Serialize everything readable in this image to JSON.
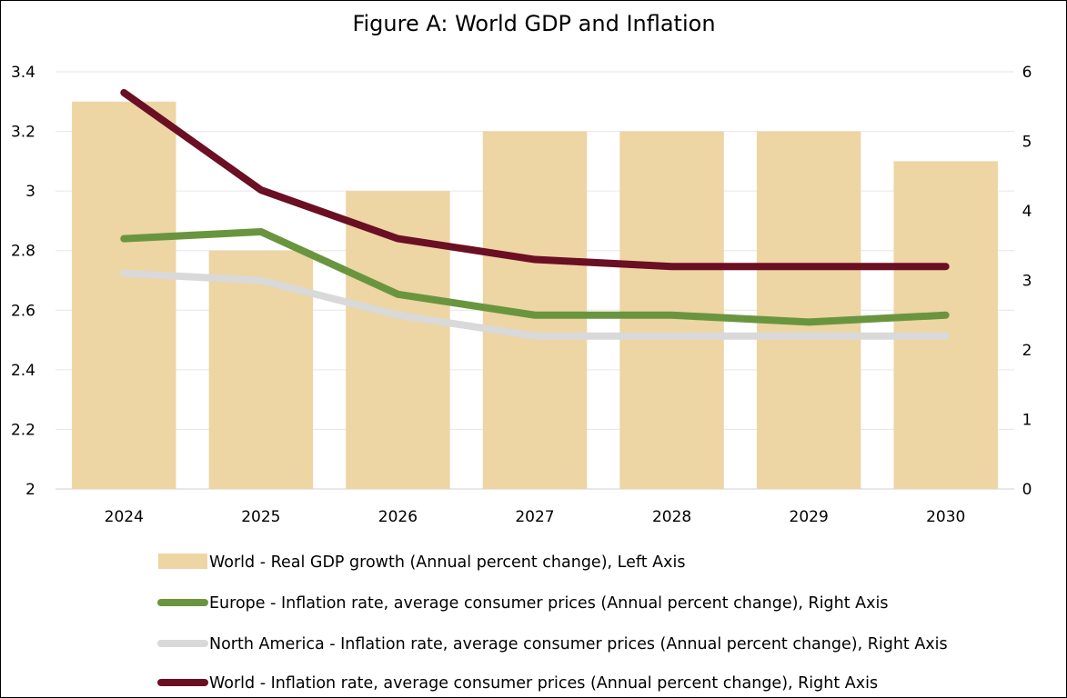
{
  "chart_data": {
    "type": "bar",
    "title": "Figure A: World GDP and Inflation",
    "categories": [
      "2024",
      "2025",
      "2026",
      "2027",
      "2028",
      "2029",
      "2030"
    ],
    "left_axis": {
      "range": [
        2,
        3.4
      ],
      "ticks": [
        "2",
        "2.2",
        "2.4",
        "2.6",
        "2.8",
        "3",
        "3.2",
        "3.4"
      ]
    },
    "right_axis": {
      "range": [
        0,
        6
      ],
      "ticks": [
        "0",
        "1",
        "2",
        "3",
        "4",
        "5",
        "6"
      ]
    },
    "grid": true,
    "legend_position": "bottom",
    "series": [
      {
        "name": "World - Real GDP growth (Annual percent change), Left Axis",
        "type": "bar",
        "axis": "left",
        "color": "#EDD5A4",
        "values": [
          3.3,
          2.8,
          3.0,
          3.2,
          3.2,
          3.2,
          3.1
        ]
      },
      {
        "name": "Europe - Inflation rate, average consumer prices (Annual percent change), Right Axis",
        "type": "line",
        "axis": "right",
        "color": "#6A953F",
        "values": [
          3.6,
          3.7,
          2.8,
          2.5,
          2.5,
          2.4,
          2.5
        ]
      },
      {
        "name": "North America - Inflation rate, average consumer prices (Annual percent change), Right Axis",
        "type": "line",
        "axis": "right",
        "color": "#D9D9D9",
        "values": [
          3.1,
          3.0,
          2.5,
          2.2,
          2.2,
          2.2,
          2.2
        ]
      },
      {
        "name": "World - Inflation rate, average consumer prices (Annual percent change), Right Axis",
        "type": "line",
        "axis": "right",
        "color": "#6B0F24",
        "values": [
          5.7,
          4.3,
          3.6,
          3.3,
          3.2,
          3.2,
          3.2
        ]
      }
    ]
  }
}
